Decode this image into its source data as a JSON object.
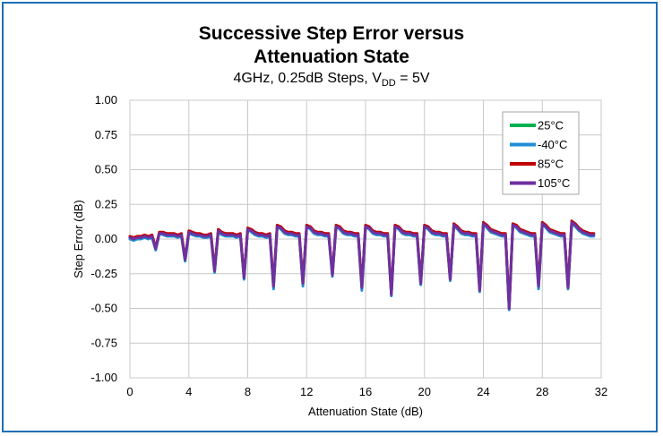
{
  "chart_data": {
    "type": "line",
    "title_line1": "Successive Step Error versus",
    "title_line2": "Attenuation State",
    "subtitle_prefix": "4GHz, 0.25dB Steps, V",
    "subtitle_sub": "DD",
    "subtitle_suffix": " = 5V",
    "xlabel": "Attenuation State (dB)",
    "ylabel": "Step Error (dB)",
    "xlim": [
      0,
      32
    ],
    "ylim": [
      -1.0,
      1.0
    ],
    "xticks": [
      0,
      4,
      8,
      12,
      16,
      20,
      24,
      28,
      32
    ],
    "xtick_labels": [
      "0",
      "4",
      "8",
      "12",
      "16",
      "20",
      "24",
      "28",
      "32"
    ],
    "yticks": [
      1.0,
      0.75,
      0.5,
      0.25,
      0.0,
      -0.25,
      -0.5,
      -0.75,
      -1.0
    ],
    "ytick_labels": [
      "1.00",
      "0.75",
      "0.50",
      "0.25",
      "0.00",
      "-0.25",
      "-0.50",
      "-0.75",
      "-1.00"
    ],
    "grid": true,
    "legend_position": "top-right",
    "series": [
      {
        "name": "25°C",
        "color": "#00b050",
        "offset": 0.0,
        "x": [
          0,
          0.25,
          0.5,
          0.75,
          1,
          1.25,
          1.5,
          1.75,
          2,
          2.25,
          2.5,
          2.75,
          3,
          3.25,
          3.5,
          3.75,
          4,
          4.25,
          4.5,
          4.75,
          5,
          5.25,
          5.5,
          5.75,
          6,
          6.25,
          6.5,
          6.75,
          7,
          7.25,
          7.5,
          7.75,
          8,
          8.25,
          8.5,
          8.75,
          9,
          9.25,
          9.5,
          9.75,
          10,
          10.25,
          10.5,
          10.75,
          11,
          11.25,
          11.5,
          11.75,
          12,
          12.25,
          12.5,
          12.75,
          13,
          13.25,
          13.5,
          13.75,
          14,
          14.25,
          14.5,
          14.75,
          15,
          15.25,
          15.5,
          15.75,
          16,
          16.25,
          16.5,
          16.75,
          17,
          17.25,
          17.5,
          17.75,
          18,
          18.25,
          18.5,
          18.75,
          19,
          19.25,
          19.5,
          19.75,
          20,
          20.25,
          20.5,
          20.75,
          21,
          21.25,
          21.5,
          21.75,
          22,
          22.25,
          22.5,
          22.75,
          23,
          23.25,
          23.5,
          23.75,
          24,
          24.25,
          24.5,
          24.75,
          25,
          25.25,
          25.5,
          25.75,
          26,
          26.25,
          26.5,
          26.75,
          27,
          27.25,
          27.5,
          27.75,
          28,
          28.25,
          28.5,
          28.75,
          29,
          29.25,
          29.5,
          29.75,
          30,
          30.25,
          30.5,
          30.75,
          31,
          31.25,
          31.5
        ],
        "y": [
          0.01,
          0.0,
          0.01,
          0.01,
          0.02,
          0.01,
          0.02,
          -0.07,
          0.05,
          0.04,
          0.03,
          0.03,
          0.03,
          0.02,
          0.03,
          -0.15,
          0.05,
          0.04,
          0.03,
          0.03,
          0.02,
          0.02,
          0.03,
          -0.23,
          0.06,
          0.04,
          0.03,
          0.03,
          0.03,
          0.02,
          0.03,
          -0.28,
          0.08,
          0.06,
          0.04,
          0.03,
          0.03,
          0.02,
          0.03,
          -0.34,
          0.1,
          0.08,
          0.05,
          0.04,
          0.04,
          0.03,
          0.03,
          -0.32,
          0.1,
          0.08,
          0.05,
          0.04,
          0.04,
          0.03,
          0.03,
          -0.26,
          0.1,
          0.08,
          0.05,
          0.04,
          0.04,
          0.03,
          0.03,
          -0.35,
          0.1,
          0.08,
          0.05,
          0.04,
          0.04,
          0.03,
          0.03,
          -0.4,
          0.1,
          0.08,
          0.05,
          0.04,
          0.04,
          0.03,
          0.03,
          -0.32,
          0.1,
          0.08,
          0.05,
          0.04,
          0.04,
          0.03,
          0.03,
          -0.29,
          0.11,
          0.08,
          0.05,
          0.04,
          0.04,
          0.03,
          0.03,
          -0.37,
          0.12,
          0.09,
          0.06,
          0.05,
          0.04,
          0.03,
          0.03,
          -0.5,
          0.11,
          0.09,
          0.06,
          0.05,
          0.04,
          0.03,
          0.03,
          -0.34,
          0.12,
          0.09,
          0.06,
          0.05,
          0.04,
          0.03,
          0.03,
          -0.35,
          0.12,
          0.1,
          0.07,
          0.05,
          0.04,
          0.03,
          0.03
        ]
      },
      {
        "name": "-40°C",
        "color": "#1f8fd6",
        "offset": -0.012,
        "x": [
          0,
          0.25,
          0.5,
          0.75,
          1,
          1.25,
          1.5,
          1.75,
          2,
          2.25,
          2.5,
          2.75,
          3,
          3.25,
          3.5,
          3.75,
          4,
          4.25,
          4.5,
          4.75,
          5,
          5.25,
          5.5,
          5.75,
          6,
          6.25,
          6.5,
          6.75,
          7,
          7.25,
          7.5,
          7.75,
          8,
          8.25,
          8.5,
          8.75,
          9,
          9.25,
          9.5,
          9.75,
          10,
          10.25,
          10.5,
          10.75,
          11,
          11.25,
          11.5,
          11.75,
          12,
          12.25,
          12.5,
          12.75,
          13,
          13.25,
          13.5,
          13.75,
          14,
          14.25,
          14.5,
          14.75,
          15,
          15.25,
          15.5,
          15.75,
          16,
          16.25,
          16.5,
          16.75,
          17,
          17.25,
          17.5,
          17.75,
          18,
          18.25,
          18.5,
          18.75,
          19,
          19.25,
          19.5,
          19.75,
          20,
          20.25,
          20.5,
          20.75,
          21,
          21.25,
          21.5,
          21.75,
          22,
          22.25,
          22.5,
          22.75,
          23,
          23.25,
          23.5,
          23.75,
          24,
          24.25,
          24.5,
          24.75,
          25,
          25.25,
          25.5,
          25.75,
          26,
          26.25,
          26.5,
          26.75,
          27,
          27.25,
          27.5,
          27.75,
          28,
          28.25,
          28.5,
          28.75,
          29,
          29.25,
          29.5,
          29.75,
          30,
          30.25,
          30.5,
          30.75,
          31,
          31.25,
          31.5
        ],
        "y": [
          0.0,
          -0.01,
          0.0,
          0.0,
          0.01,
          0.0,
          0.01,
          -0.08,
          0.04,
          0.03,
          0.02,
          0.02,
          0.02,
          0.01,
          0.02,
          -0.16,
          0.04,
          0.03,
          0.02,
          0.02,
          0.01,
          0.01,
          0.02,
          -0.24,
          0.05,
          0.03,
          0.02,
          0.02,
          0.02,
          0.01,
          0.02,
          -0.29,
          0.07,
          0.05,
          0.03,
          0.02,
          0.02,
          0.01,
          0.02,
          -0.36,
          0.09,
          0.07,
          0.04,
          0.03,
          0.03,
          0.02,
          0.02,
          -0.34,
          0.09,
          0.07,
          0.04,
          0.03,
          0.03,
          0.02,
          0.02,
          -0.27,
          0.09,
          0.07,
          0.04,
          0.03,
          0.03,
          0.02,
          0.02,
          -0.37,
          0.09,
          0.07,
          0.04,
          0.03,
          0.03,
          0.02,
          0.02,
          -0.41,
          0.09,
          0.07,
          0.04,
          0.03,
          0.03,
          0.02,
          0.02,
          -0.33,
          0.09,
          0.07,
          0.04,
          0.03,
          0.03,
          0.02,
          0.02,
          -0.3,
          0.1,
          0.07,
          0.04,
          0.03,
          0.03,
          0.02,
          0.02,
          -0.38,
          0.11,
          0.08,
          0.05,
          0.04,
          0.03,
          0.02,
          0.02,
          -0.51,
          0.1,
          0.08,
          0.05,
          0.04,
          0.03,
          0.02,
          0.02,
          -0.36,
          0.11,
          0.08,
          0.05,
          0.04,
          0.03,
          0.02,
          0.02,
          -0.36,
          0.11,
          0.09,
          0.06,
          0.04,
          0.03,
          0.02,
          0.02
        ]
      },
      {
        "name": "85°C",
        "color": "#c00000",
        "offset": 0.008,
        "x": [
          0,
          0.25,
          0.5,
          0.75,
          1,
          1.25,
          1.5,
          1.75,
          2,
          2.25,
          2.5,
          2.75,
          3,
          3.25,
          3.5,
          3.75,
          4,
          4.25,
          4.5,
          4.75,
          5,
          5.25,
          5.5,
          5.75,
          6,
          6.25,
          6.5,
          6.75,
          7,
          7.25,
          7.5,
          7.75,
          8,
          8.25,
          8.5,
          8.75,
          9,
          9.25,
          9.5,
          9.75,
          10,
          10.25,
          10.5,
          10.75,
          11,
          11.25,
          11.5,
          11.75,
          12,
          12.25,
          12.5,
          12.75,
          13,
          13.25,
          13.5,
          13.75,
          14,
          14.25,
          14.5,
          14.75,
          15,
          15.25,
          15.5,
          15.75,
          16,
          16.25,
          16.5,
          16.75,
          17,
          17.25,
          17.5,
          17.75,
          18,
          18.25,
          18.5,
          18.75,
          19,
          19.25,
          19.5,
          19.75,
          20,
          20.25,
          20.5,
          20.75,
          21,
          21.25,
          21.5,
          21.75,
          22,
          22.25,
          22.5,
          22.75,
          23,
          23.25,
          23.5,
          23.75,
          24,
          24.25,
          24.5,
          24.75,
          25,
          25.25,
          25.5,
          25.75,
          26,
          26.25,
          26.5,
          26.75,
          27,
          27.25,
          27.5,
          27.75,
          28,
          28.25,
          28.5,
          28.75,
          29,
          29.25,
          29.5,
          29.75,
          30,
          30.25,
          30.5,
          30.75,
          31,
          31.25,
          31.5
        ],
        "y": [
          0.02,
          0.01,
          0.02,
          0.02,
          0.03,
          0.02,
          0.03,
          -0.06,
          0.05,
          0.05,
          0.04,
          0.04,
          0.04,
          0.03,
          0.04,
          -0.14,
          0.06,
          0.05,
          0.04,
          0.04,
          0.03,
          0.03,
          0.04,
          -0.22,
          0.07,
          0.05,
          0.04,
          0.04,
          0.04,
          0.03,
          0.04,
          -0.27,
          0.08,
          0.07,
          0.05,
          0.04,
          0.04,
          0.03,
          0.04,
          -0.33,
          0.1,
          0.09,
          0.06,
          0.05,
          0.05,
          0.04,
          0.04,
          -0.31,
          0.1,
          0.09,
          0.06,
          0.05,
          0.05,
          0.04,
          0.04,
          -0.25,
          0.1,
          0.09,
          0.06,
          0.05,
          0.05,
          0.04,
          0.04,
          -0.34,
          0.1,
          0.09,
          0.06,
          0.05,
          0.05,
          0.04,
          0.04,
          -0.39,
          0.1,
          0.09,
          0.06,
          0.05,
          0.05,
          0.04,
          0.04,
          -0.31,
          0.1,
          0.09,
          0.06,
          0.05,
          0.05,
          0.04,
          0.04,
          -0.28,
          0.11,
          0.09,
          0.06,
          0.05,
          0.05,
          0.04,
          0.04,
          -0.36,
          0.12,
          0.1,
          0.07,
          0.06,
          0.05,
          0.04,
          0.04,
          -0.49,
          0.11,
          0.1,
          0.07,
          0.06,
          0.05,
          0.04,
          0.04,
          -0.33,
          0.12,
          0.1,
          0.07,
          0.06,
          0.05,
          0.04,
          0.04,
          -0.34,
          0.13,
          0.11,
          0.08,
          0.06,
          0.05,
          0.04,
          0.04
        ]
      },
      {
        "name": "105°C",
        "color": "#7030a0",
        "offset": 0.004,
        "x": [
          0,
          0.25,
          0.5,
          0.75,
          1,
          1.25,
          1.5,
          1.75,
          2,
          2.25,
          2.5,
          2.75,
          3,
          3.25,
          3.5,
          3.75,
          4,
          4.25,
          4.5,
          4.75,
          5,
          5.25,
          5.5,
          5.75,
          6,
          6.25,
          6.5,
          6.75,
          7,
          7.25,
          7.5,
          7.75,
          8,
          8.25,
          8.5,
          8.75,
          9,
          9.25,
          9.5,
          9.75,
          10,
          10.25,
          10.5,
          10.75,
          11,
          11.25,
          11.5,
          11.75,
          12,
          12.25,
          12.5,
          12.75,
          13,
          13.25,
          13.5,
          13.75,
          14,
          14.25,
          14.5,
          14.75,
          15,
          15.25,
          15.5,
          15.75,
          16,
          16.25,
          16.5,
          16.75,
          17,
          17.25,
          17.5,
          17.75,
          18,
          18.25,
          18.5,
          18.75,
          19,
          19.25,
          19.5,
          19.75,
          20,
          20.25,
          20.5,
          20.75,
          21,
          21.25,
          21.5,
          21.75,
          22,
          22.25,
          22.5,
          22.75,
          23,
          23.25,
          23.5,
          23.75,
          24,
          24.25,
          24.5,
          24.75,
          25,
          25.25,
          25.5,
          25.75,
          26,
          26.25,
          26.5,
          26.75,
          27,
          27.25,
          27.5,
          27.75,
          28,
          28.25,
          28.5,
          28.75,
          29,
          29.25,
          29.5,
          29.75,
          30,
          30.25,
          30.5,
          30.75,
          31,
          31.25,
          31.5
        ],
        "y": [
          0.01,
          0.0,
          0.01,
          0.01,
          0.02,
          0.01,
          0.02,
          -0.07,
          0.04,
          0.04,
          0.03,
          0.03,
          0.03,
          0.02,
          0.03,
          -0.15,
          0.05,
          0.04,
          0.03,
          0.03,
          0.02,
          0.02,
          0.03,
          -0.23,
          0.06,
          0.04,
          0.03,
          0.03,
          0.03,
          0.02,
          0.03,
          -0.28,
          0.07,
          0.06,
          0.04,
          0.03,
          0.03,
          0.02,
          0.03,
          -0.34,
          0.09,
          0.08,
          0.05,
          0.04,
          0.04,
          0.03,
          0.03,
          -0.32,
          0.09,
          0.08,
          0.05,
          0.04,
          0.04,
          0.03,
          0.03,
          -0.26,
          0.09,
          0.08,
          0.05,
          0.04,
          0.04,
          0.03,
          0.03,
          -0.35,
          0.09,
          0.08,
          0.05,
          0.04,
          0.04,
          0.03,
          0.03,
          -0.4,
          0.09,
          0.08,
          0.05,
          0.04,
          0.04,
          0.03,
          0.03,
          -0.32,
          0.09,
          0.08,
          0.05,
          0.04,
          0.04,
          0.03,
          0.03,
          -0.29,
          0.1,
          0.08,
          0.05,
          0.04,
          0.04,
          0.03,
          0.03,
          -0.37,
          0.11,
          0.09,
          0.06,
          0.05,
          0.04,
          0.03,
          0.03,
          -0.5,
          0.1,
          0.09,
          0.06,
          0.05,
          0.04,
          0.03,
          0.03,
          -0.34,
          0.11,
          0.09,
          0.06,
          0.05,
          0.04,
          0.03,
          0.03,
          -0.35,
          0.12,
          0.1,
          0.07,
          0.05,
          0.04,
          0.03,
          0.03
        ]
      }
    ]
  }
}
